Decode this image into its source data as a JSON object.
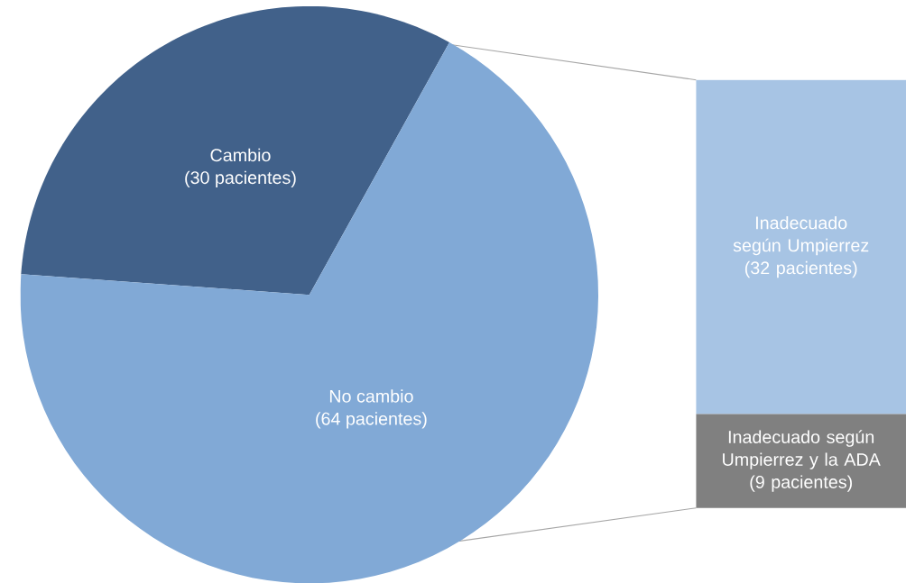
{
  "chart_data": [
    {
      "type": "pie",
      "categories": [
        "Cambio",
        "No cambio"
      ],
      "values": [
        30,
        64
      ],
      "colors": [
        "#41618a",
        "#81a9d6"
      ],
      "value_labels": [
        "(30 pacientes)",
        "(64 pacientes)"
      ]
    },
    {
      "type": "bar",
      "stacked": true,
      "categories": [
        null
      ],
      "series": [
        {
          "name": "Inadecuado según Umpierrez y la ADA",
          "color": "#808080",
          "values": [
            9
          ],
          "value_labels": [
            "(9 pacientes)"
          ]
        },
        {
          "name": "Inadecuado según Umpierrez",
          "color": "#a7c4e4",
          "values": [
            32
          ],
          "value_labels": [
            "(32 pacientes)"
          ]
        }
      ]
    }
  ]
}
